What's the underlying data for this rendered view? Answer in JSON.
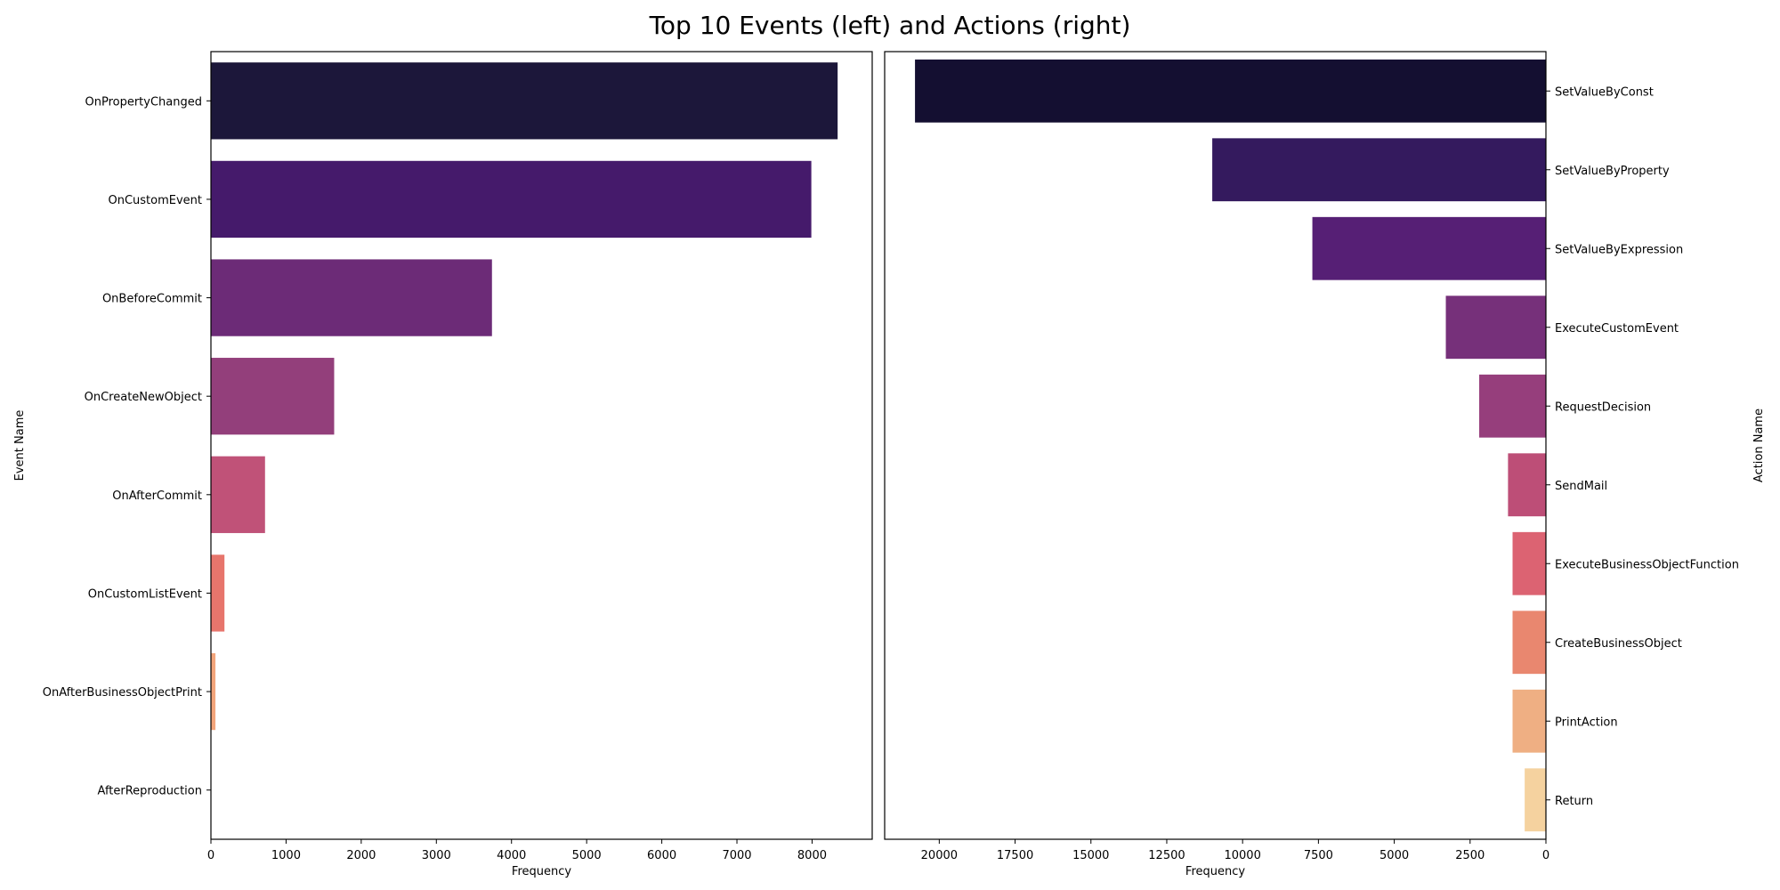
{
  "title": "Top 10 Events (left) and Actions (right)",
  "chart_data": [
    {
      "type": "bar",
      "orientation": "horizontal",
      "xlabel": "Frequency",
      "ylabel": "Event Name",
      "xlim": [
        0,
        8800
      ],
      "xticks": [
        0,
        1000,
        2000,
        3000,
        4000,
        5000,
        6000,
        7000,
        8000
      ],
      "ytick_side": "left",
      "x_inverted": false,
      "categories": [
        "OnPropertyChanged",
        "OnCustomEvent",
        "OnBeforeCommit",
        "OnCreateNewObject",
        "OnAfterCommit",
        "OnCustomListEvent",
        "OnAfterBusinessObjectPrint",
        "AfterReproduction"
      ],
      "values": [
        8340,
        7990,
        3740,
        1640,
        720,
        180,
        60,
        5
      ],
      "colors": [
        "#1c173a",
        "#451a6b",
        "#6c2b77",
        "#933f7b",
        "#c05278",
        "#e7756c",
        "#f3a57b",
        "#f8d3a0"
      ],
      "grid": false
    },
    {
      "type": "bar",
      "orientation": "horizontal",
      "xlabel": "Frequency",
      "ylabel": "Action Name",
      "xlim": [
        0,
        21800
      ],
      "xticks": [
        0,
        2500,
        5000,
        7500,
        10000,
        12500,
        15000,
        17500,
        20000
      ],
      "ytick_side": "right",
      "x_inverted": true,
      "categories": [
        "SetValueByConst",
        "SetValueByProperty",
        "SetValueByExpression",
        "ExecuteCustomEvent",
        "RequestDecision",
        "SendMail",
        "ExecuteBusinessObjectFunction",
        "CreateBusinessObject",
        "PrintAction",
        "Return"
      ],
      "values": [
        20800,
        11000,
        7700,
        3300,
        2200,
        1250,
        1100,
        1100,
        1100,
        700
      ],
      "colors": [
        "#140f31",
        "#341a5e",
        "#561f75",
        "#76307a",
        "#963e7c",
        "#bd4e77",
        "#dc6372",
        "#e9876f",
        "#efaf83",
        "#f5d29f"
      ],
      "grid": false
    }
  ]
}
